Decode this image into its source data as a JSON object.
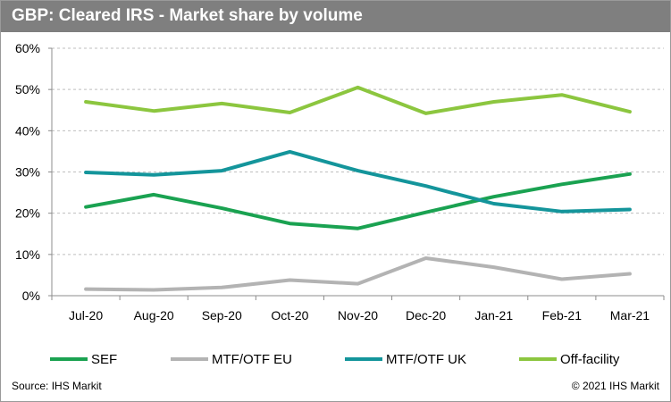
{
  "header": {
    "title": "GBP: Cleared IRS - Market share by volume"
  },
  "footer": {
    "source": "Source: IHS Markit",
    "copyright": "© 2021 IHS Markit"
  },
  "chart_data": {
    "type": "line",
    "title": "GBP: Cleared IRS - Market share by volume",
    "xlabel": "",
    "ylabel": "",
    "categories": [
      "Jul-20",
      "Aug-20",
      "Sep-20",
      "Oct-20",
      "Nov-20",
      "Dec-20",
      "Jan-21",
      "Feb-21",
      "Mar-21"
    ],
    "ylim": [
      0,
      60
    ],
    "yticks": [
      0,
      10,
      20,
      30,
      40,
      50,
      60
    ],
    "ytick_labels": [
      "0%",
      "10%",
      "20%",
      "30%",
      "40%",
      "50%",
      "60%"
    ],
    "grid": "horizontal dashed",
    "legend_position": "bottom",
    "series": [
      {
        "name": "SEF",
        "color": "#1aa251",
        "values": [
          21.5,
          24.5,
          21.2,
          17.5,
          16.3,
          20.2,
          24.0,
          27.0,
          29.5
        ]
      },
      {
        "name": "MTF/OTF EU",
        "color": "#b3b3b3",
        "values": [
          1.6,
          1.4,
          2.0,
          3.8,
          2.9,
          9.1,
          6.9,
          4.0,
          5.3
        ]
      },
      {
        "name": "MTF/OTF UK",
        "color": "#14959b",
        "values": [
          29.9,
          29.3,
          30.3,
          34.9,
          30.3,
          26.6,
          22.3,
          20.4,
          20.9
        ]
      },
      {
        "name": "Off-facility",
        "color": "#8cc63f",
        "values": [
          47.0,
          44.8,
          46.6,
          44.4,
          50.5,
          44.2,
          47.0,
          48.7,
          44.6
        ]
      }
    ]
  }
}
